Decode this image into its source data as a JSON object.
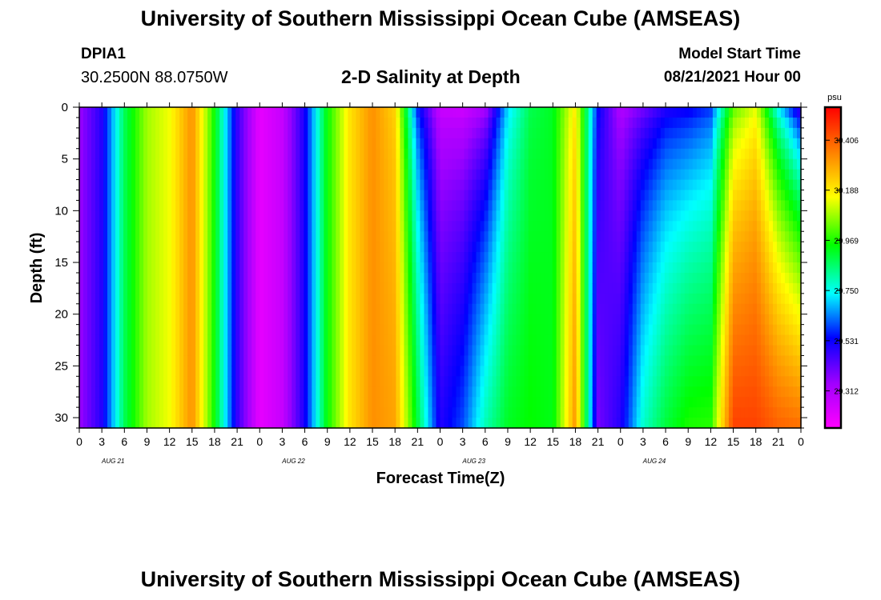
{
  "header": {
    "title": "University of Southern Mississippi Ocean Cube (AMSEAS)",
    "station_id": "DPIA1",
    "coordinates": "30.2500N  88.0750W",
    "plot_title": "2-D Salinity at Depth",
    "model_start_label": "Model Start Time",
    "model_start_value": "08/21/2021 Hour 00"
  },
  "footer": {
    "title": "University of Southern Mississippi Ocean Cube (AMSEAS)"
  },
  "chart_data": {
    "type": "heatmap",
    "title": "2-D Salinity at Depth",
    "xlabel": "Forecast Time(Z)",
    "ylabel": "Depth (ft)",
    "xlim_hours": [
      0,
      96
    ],
    "ylim_ft": [
      0,
      31
    ],
    "x_tick_labels": [
      "0",
      "3",
      "6",
      "9",
      "12",
      "15",
      "18",
      "21",
      "0",
      "3",
      "6",
      "9",
      "12",
      "15",
      "18",
      "21",
      "0",
      "3",
      "6",
      "9",
      "12",
      "15",
      "18",
      "21",
      "0",
      "3",
      "6",
      "9",
      "12",
      "15",
      "18",
      "21",
      "0"
    ],
    "y_tick_labels": [
      "0",
      "5",
      "10",
      "15",
      "20",
      "25",
      "30"
    ],
    "day_labels": [
      "AUG 21",
      "AUG 22",
      "AUG 23",
      "AUG 24"
    ],
    "colorbar": {
      "unit": "psu",
      "vmin": 29.15,
      "vmax": 30.55,
      "tick_labels": [
        "30.406",
        "30.188",
        "29.969",
        "29.750",
        "29.531",
        "29.312"
      ]
    },
    "surface_salinity_hours": [
      0,
      3,
      6,
      9,
      12,
      15,
      18,
      21,
      24,
      27,
      30,
      33,
      36,
      39,
      42,
      45,
      48,
      51,
      54,
      57,
      60,
      63,
      66,
      69,
      72,
      75,
      78,
      81,
      84,
      87,
      90,
      93,
      96
    ],
    "surface_salinity_psu": [
      29.35,
      29.5,
      29.88,
      30.08,
      30.15,
      30.33,
      29.95,
      29.48,
      29.2,
      29.27,
      29.52,
      29.95,
      30.2,
      30.33,
      30.22,
      29.55,
      29.25,
      29.23,
      29.3,
      29.7,
      29.88,
      29.92,
      30.18,
      29.55,
      29.3,
      29.38,
      29.48,
      29.5,
      29.56,
      30.0,
      30.12,
      29.7,
      29.4
    ],
    "deep_salinity_psu": [
      29.35,
      29.5,
      29.88,
      30.08,
      30.15,
      30.33,
      29.95,
      29.48,
      29.2,
      29.27,
      29.52,
      29.95,
      30.2,
      30.33,
      30.3,
      29.9,
      29.5,
      29.6,
      29.8,
      29.92,
      29.95,
      29.93,
      30.32,
      29.4,
      29.5,
      29.78,
      29.9,
      29.97,
      29.98,
      30.45,
      30.45,
      30.4,
      30.38
    ]
  }
}
